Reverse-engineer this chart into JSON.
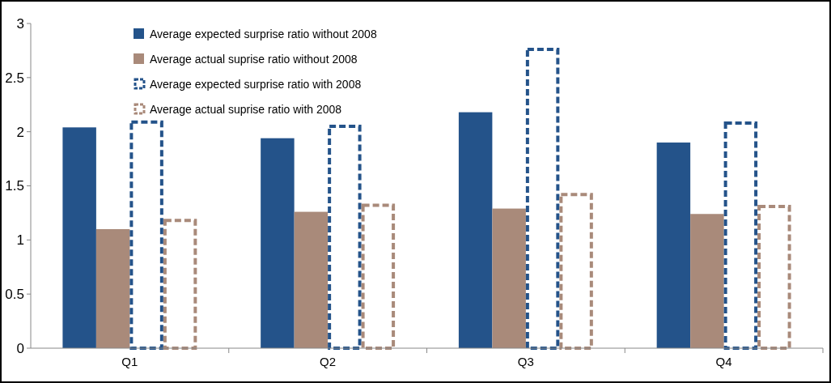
{
  "chart_data": {
    "type": "bar",
    "categories": [
      "Q1",
      "Q2",
      "Q3",
      "Q4"
    ],
    "series": [
      {
        "name": "Average expected surprise ratio without 2008",
        "color": "#24538a",
        "values": [
          2.04,
          1.94,
          2.18,
          1.9
        ]
      },
      {
        "name": "Average actual suprise ratio without 2008",
        "color": "#a98a7a",
        "values": [
          1.1,
          1.26,
          1.29,
          1.24
        ]
      },
      {
        "name": "Average expected surprise ratio with 2008",
        "color": "#24538a",
        "line_style": "dashed",
        "values": [
          2.09,
          2.05,
          2.76,
          2.08
        ]
      },
      {
        "name": "Average actual suprise ratio with 2008",
        "color": "#a98a7a",
        "line_style": "dashed",
        "values": [
          1.18,
          1.32,
          1.42,
          1.31
        ]
      }
    ],
    "ylim": [
      0,
      3
    ],
    "yticks": [
      0,
      0.5,
      1,
      1.5,
      2,
      2.5,
      3
    ],
    "grid": false,
    "legend": "top left"
  }
}
